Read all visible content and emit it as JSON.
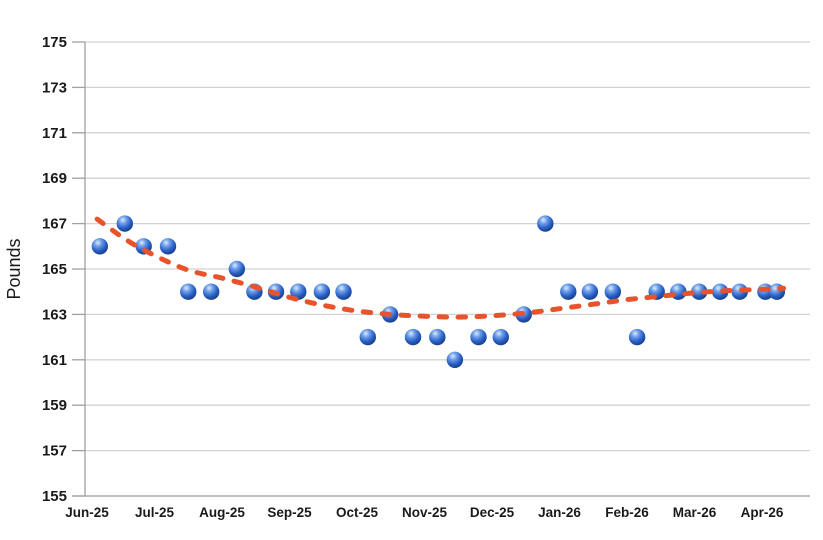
{
  "chart": {
    "y_axis_title": "Pounds",
    "colors": {
      "marker_highlight": "#dcebfc",
      "marker_mid": "#6f9fe9",
      "marker_main": "#2a5fc6",
      "marker_dark": "#123677",
      "trend": "#e8532c",
      "gridline": "#d2d2d2",
      "axis": "#a0a0a0",
      "label": "#1a1a1a",
      "background": "#ffffff"
    }
  },
  "chart_data": {
    "type": "scatter",
    "title": "",
    "xlabel": "",
    "ylabel": "Pounds",
    "ylim": [
      155,
      175
    ],
    "y_ticks": [
      155,
      157,
      159,
      161,
      163,
      165,
      167,
      169,
      171,
      173,
      175
    ],
    "x_tick_labels": [
      "Jun-25",
      "Jul-25",
      "Aug-25",
      "Sep-25",
      "Oct-25",
      "Nov-25",
      "Dec-25",
      "Jan-26",
      "Feb-26",
      "Mar-26",
      "Apr-26"
    ],
    "x_unit": "months_after_Jun25_tick",
    "grid": "horizontal",
    "legend": "none",
    "points": [
      {
        "x": 0.19,
        "y": 166
      },
      {
        "x": 0.56,
        "y": 167
      },
      {
        "x": 0.84,
        "y": 166
      },
      {
        "x": 1.2,
        "y": 166
      },
      {
        "x": 1.5,
        "y": 164
      },
      {
        "x": 1.84,
        "y": 164
      },
      {
        "x": 2.22,
        "y": 165
      },
      {
        "x": 2.48,
        "y": 164
      },
      {
        "x": 2.8,
        "y": 164
      },
      {
        "x": 3.13,
        "y": 164
      },
      {
        "x": 3.48,
        "y": 164
      },
      {
        "x": 3.8,
        "y": 164
      },
      {
        "x": 4.16,
        "y": 162
      },
      {
        "x": 4.49,
        "y": 163
      },
      {
        "x": 4.83,
        "y": 162
      },
      {
        "x": 5.19,
        "y": 162
      },
      {
        "x": 5.45,
        "y": 161
      },
      {
        "x": 5.8,
        "y": 162
      },
      {
        "x": 6.13,
        "y": 162
      },
      {
        "x": 6.47,
        "y": 163
      },
      {
        "x": 6.79,
        "y": 167
      },
      {
        "x": 7.13,
        "y": 164
      },
      {
        "x": 7.45,
        "y": 164
      },
      {
        "x": 7.79,
        "y": 164
      },
      {
        "x": 8.15,
        "y": 162
      },
      {
        "x": 8.44,
        "y": 164
      },
      {
        "x": 8.76,
        "y": 164
      },
      {
        "x": 9.07,
        "y": 164
      },
      {
        "x": 9.38,
        "y": 164
      },
      {
        "x": 9.67,
        "y": 164
      },
      {
        "x": 10.05,
        "y": 164
      },
      {
        "x": 10.22,
        "y": 164
      }
    ],
    "trend": {
      "style": "dashed",
      "shape": "polynomial",
      "samples": [
        [
          0.15,
          167.2
        ],
        [
          0.6,
          166.25
        ],
        [
          1.0,
          165.6
        ],
        [
          1.5,
          164.95
        ],
        [
          2.0,
          164.6
        ],
        [
          2.5,
          164.2
        ],
        [
          3.0,
          163.75
        ],
        [
          3.5,
          163.4
        ],
        [
          4.0,
          163.15
        ],
        [
          4.5,
          163.0
        ],
        [
          5.0,
          162.92
        ],
        [
          5.5,
          162.88
        ],
        [
          6.0,
          162.94
        ],
        [
          6.5,
          163.06
        ],
        [
          7.0,
          163.25
        ],
        [
          7.5,
          163.45
        ],
        [
          8.0,
          163.65
        ],
        [
          8.5,
          163.8
        ],
        [
          9.0,
          163.95
        ],
        [
          9.5,
          164.05
        ],
        [
          10.0,
          164.1
        ],
        [
          10.32,
          164.15
        ]
      ]
    }
  }
}
